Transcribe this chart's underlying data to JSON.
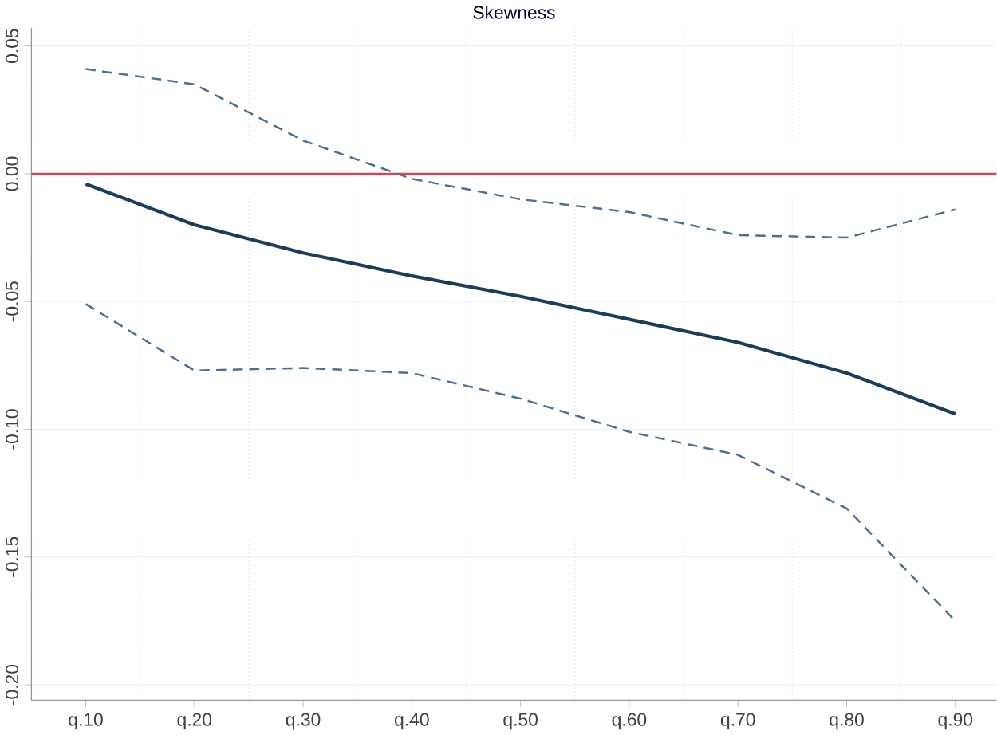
{
  "chart_data": {
    "type": "line",
    "title": "Skewness",
    "categories": [
      "q.10",
      "q.20",
      "q.30",
      "q.40",
      "q.50",
      "q.60",
      "q.70",
      "q.80",
      "q.90"
    ],
    "series": [
      {
        "color": "#1a3d5c",
        "line_style": "solid",
        "values": [
          -0.004,
          -0.02,
          -0.031,
          -0.04,
          -0.048,
          -0.057,
          -0.066,
          -0.078,
          -0.094
        ]
      },
      {
        "color": "#4f6f90",
        "line_style": "dashed",
        "values": [
          0.041,
          0.035,
          0.013,
          -0.002,
          -0.01,
          -0.015,
          -0.024,
          -0.025,
          -0.014
        ]
      },
      {
        "color": "#4f6f90",
        "line_style": "dashed",
        "values": [
          -0.051,
          -0.077,
          -0.076,
          -0.078,
          -0.088,
          -0.101,
          -0.11,
          -0.131,
          -0.175
        ]
      }
    ],
    "ylim": [
      -0.206,
      0.057
    ],
    "yticks": [
      {
        "value": -0.2,
        "label": "-0.20"
      },
      {
        "value": -0.15,
        "label": "-0.15"
      },
      {
        "value": -0.1,
        "label": "-0.10"
      },
      {
        "value": -0.05,
        "label": "-0.05"
      },
      {
        "value": 0,
        "label": "0.00"
      },
      {
        "value": 0.05,
        "label": "0.05"
      }
    ],
    "ref_lines": [
      {
        "axis": "y",
        "value": 0,
        "color": "#e0405a"
      }
    ],
    "grid": true,
    "marker": "none"
  }
}
